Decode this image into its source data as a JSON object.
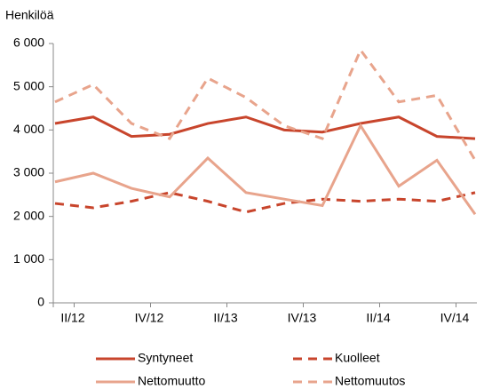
{
  "chart_data": {
    "type": "line",
    "y_label": "Henkilöä",
    "categories": [
      "II/12",
      null,
      "IV/12",
      null,
      "II/13",
      null,
      "IV/13",
      null,
      "II/14",
      null,
      "IV/14",
      null
    ],
    "series": [
      {
        "name": "Syntyneet",
        "color": "#c8452c",
        "dashed": false,
        "values": [
          4150,
          4300,
          3850,
          3900,
          4150,
          4300,
          4000,
          3950,
          4150,
          4300,
          3850,
          3800
        ]
      },
      {
        "name": "Kuolleet",
        "color": "#c8452c",
        "dashed": true,
        "values": [
          2300,
          2200,
          2350,
          2550,
          2350,
          2100,
          2300,
          2400,
          2350,
          2400,
          2350,
          2550
        ]
      },
      {
        "name": "Nettomuutto",
        "color": "#e8a48c",
        "dashed": false,
        "values": [
          2800,
          3000,
          2650,
          2450,
          3350,
          2550,
          2400,
          2250,
          4100,
          2700,
          3300,
          2050
        ]
      },
      {
        "name": "Nettomuutos",
        "color": "#e8a48c",
        "dashed": true,
        "values": [
          4650,
          5050,
          4150,
          3800,
          5200,
          4750,
          4100,
          3800,
          5850,
          4650,
          4800,
          3300
        ]
      }
    ],
    "ylim": [
      0,
      6000
    ],
    "yticks": [
      0,
      {
        "value": 1000,
        "label": "1 000"
      },
      {
        "value": 2000,
        "label": "2 000"
      },
      {
        "value": 3000,
        "label": "3 000"
      },
      {
        "value": 4000,
        "label": "4 000"
      },
      {
        "value": 5000,
        "label": "5 000"
      },
      {
        "value": 6000,
        "label": "6 000"
      }
    ],
    "grid": false
  }
}
